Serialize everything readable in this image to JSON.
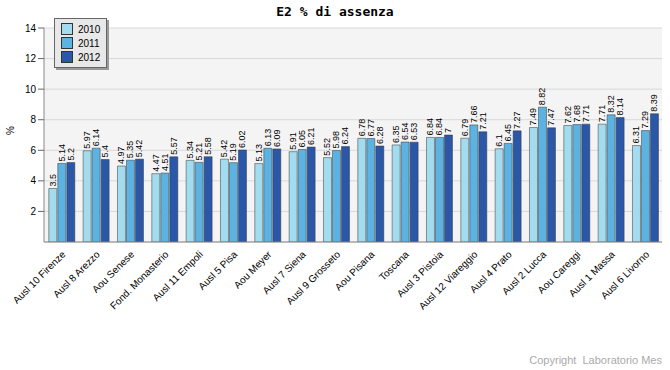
{
  "chart_data": {
    "type": "bar",
    "title": "E2 % di assenza",
    "y_label": "%",
    "annotation": "Copyright  Laboratorio Mes",
    "categories": [
      "Ausl 10 Firenze",
      "Ausl 8 Arezzo",
      "Aou Senese",
      "Fond. Monasterio",
      "Ausl 11 Empoli",
      "Ausl 5 Pisa",
      "Aou Meyer",
      "Ausl 7 Siena",
      "Ausl 9 Grosseto",
      "Aou Pisana",
      "Toscana",
      "Ausl 3 Pistoia",
      "Ausl 12 Viareggio",
      "Ausl 4 Prato",
      "Ausl 2 Lucca",
      "Aou Careggi",
      "Ausl 1 Massa",
      "Ausl 6 Livorno"
    ],
    "series": [
      {
        "name": "2010",
        "color": "#a3dcee",
        "values": [
          3.5,
          5.97,
          4.97,
          4.47,
          5.34,
          5.42,
          5.13,
          5.91,
          5.52,
          6.78,
          6.35,
          6.84,
          6.79,
          6.1,
          7.49,
          7.62,
          7.71,
          6.31
        ]
      },
      {
        "name": "2011",
        "color": "#5cb3e2",
        "values": [
          5.14,
          6.14,
          5.35,
          4.51,
          5.21,
          5.19,
          6.13,
          6.05,
          5.98,
          6.77,
          6.54,
          6.84,
          7.66,
          6.45,
          8.82,
          7.68,
          8.32,
          7.29
        ]
      },
      {
        "name": "2012",
        "color": "#2b57a8",
        "values": [
          5.2,
          5.4,
          5.42,
          5.57,
          5.58,
          6.02,
          6.09,
          6.21,
          6.24,
          6.28,
          6.53,
          7.0,
          7.21,
          7.27,
          7.47,
          7.71,
          8.14,
          8.39
        ]
      }
    ],
    "ylim": [
      0,
      14
    ],
    "yticks": [
      2,
      4,
      6,
      8,
      10,
      12,
      14
    ],
    "grid": true,
    "legend": "top-left",
    "data_labels": true
  }
}
